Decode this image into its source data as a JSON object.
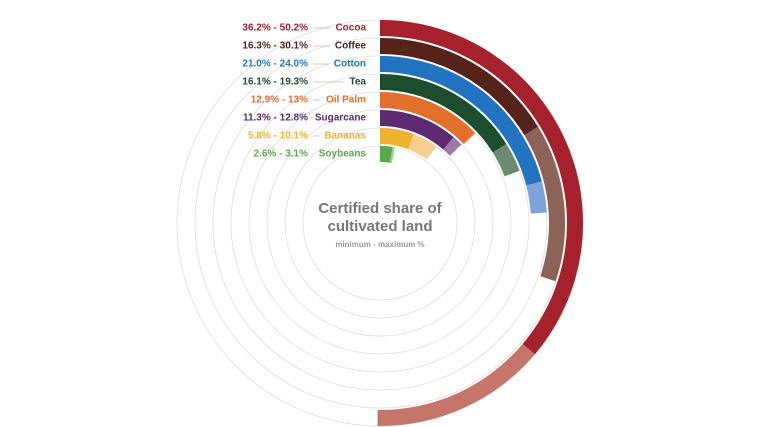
{
  "chart_data": {
    "type": "radial-range-bar",
    "title": "Certified share of cultivated land",
    "subtitle": "minimum - maximum %",
    "categories": [
      "Cocoa",
      "Coffee",
      "Cotton",
      "Tea",
      "Oil Palm",
      "Sugarcane",
      "Bananas",
      "Soybeans"
    ],
    "min": [
      36.2,
      16.3,
      21.0,
      16.1,
      12.9,
      11.3,
      5.8,
      2.6
    ],
    "max": [
      50.2,
      30.1,
      24.0,
      19.3,
      13,
      12.8,
      10.1,
      3.1
    ],
    "value_labels": [
      "36.2% - 50.2%",
      "16.3% - 30.1%",
      "21.0% - 24.0%",
      "16.1% - 19.3%",
      "12.9% - 13%",
      "11.3% - 12.8%",
      "5.8% - 10.1%",
      "2.6% - 3.1%"
    ],
    "colors": [
      "#a5212b",
      "#55231a",
      "#2274c0",
      "#1c4d2e",
      "#e2702c",
      "#5e2a70",
      "#eeb32c",
      "#5aa84a"
    ],
    "light_colors": [
      "#c6756a",
      "#8d6359",
      "#7ea3da",
      "#6b8a70",
      "#ee9d6c",
      "#9a7ba8",
      "#f6d08e",
      "#9bcf8c"
    ],
    "scale_max": 100
  }
}
